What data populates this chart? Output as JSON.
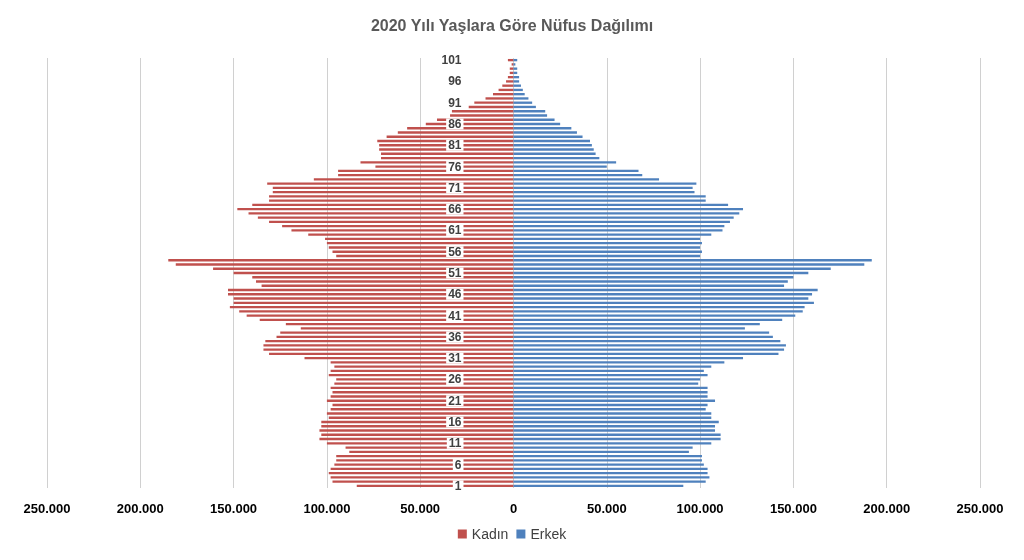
{
  "chart_data": {
    "type": "bar",
    "orientation": "horizontal",
    "title": "2020 Yılı Yaşlara Göre Nüfus Dağılımı",
    "categories": [
      "101",
      null,
      null,
      null,
      null,
      "96",
      null,
      null,
      null,
      null,
      "91",
      null,
      null,
      null,
      null,
      "86",
      null,
      null,
      null,
      null,
      "81",
      null,
      null,
      null,
      null,
      "76",
      null,
      null,
      null,
      null,
      "71",
      null,
      null,
      null,
      null,
      "66",
      null,
      null,
      null,
      null,
      "61",
      null,
      null,
      null,
      null,
      "56",
      null,
      null,
      null,
      null,
      "51",
      null,
      null,
      null,
      null,
      "46",
      null,
      null,
      null,
      null,
      "41",
      null,
      null,
      null,
      null,
      "36",
      null,
      null,
      null,
      null,
      "31",
      null,
      null,
      null,
      null,
      "26",
      null,
      null,
      null,
      null,
      "21",
      null,
      null,
      null,
      null,
      "16",
      null,
      null,
      null,
      null,
      "11",
      null,
      null,
      null,
      null,
      "6",
      null,
      null,
      null,
      null,
      "1"
    ],
    "series": [
      {
        "name": "Kadın",
        "color": "#c0504d",
        "values": [
          -3000,
          -1000,
          -2000,
          -2000,
          -3000,
          -4000,
          -6000,
          -8000,
          -11000,
          -15000,
          -21000,
          -24000,
          -33000,
          -34000,
          -41000,
          -47000,
          -57000,
          -62000,
          -68000,
          -73000,
          -72000,
          -72000,
          -71000,
          -71000,
          -82000,
          -74000,
          -94000,
          -94000,
          -107000,
          -132000,
          -129000,
          -129000,
          -131000,
          -131000,
          -140000,
          -148000,
          -142000,
          -137000,
          -131000,
          -124000,
          -119000,
          -110000,
          -101000,
          -100000,
          -99000,
          -97000,
          -95000,
          -185000,
          -181000,
          -161000,
          -150000,
          -140000,
          -138000,
          -135000,
          -153000,
          -153000,
          -150000,
          -150000,
          -152000,
          -147000,
          -143000,
          -136000,
          -122000,
          -114000,
          -125000,
          -127000,
          -133000,
          -134000,
          -134000,
          -131000,
          -112000,
          -98000,
          -96000,
          -98000,
          -99000,
          -95000,
          -96000,
          -98000,
          -97000,
          -98000,
          -100000,
          -97000,
          -98000,
          -100000,
          -99000,
          -103000,
          -103000,
          -104000,
          -103000,
          -104000,
          -100000,
          -90000,
          -88000,
          -95000,
          -95000,
          -96000,
          -98000,
          -99000,
          -98000,
          -97000,
          -84000
        ]
      },
      {
        "name": "Erkek",
        "color": "#4f81bd",
        "values": [
          2000,
          1000,
          2000,
          2000,
          3000,
          3000,
          4000,
          5000,
          6000,
          8000,
          10000,
          12000,
          17000,
          18000,
          22000,
          25000,
          31000,
          34000,
          37000,
          41000,
          42000,
          43000,
          44000,
          46000,
          55000,
          50000,
          67000,
          69000,
          78000,
          98000,
          96000,
          97000,
          103000,
          103000,
          115000,
          123000,
          121000,
          118000,
          116000,
          113000,
          112000,
          106000,
          100000,
          101000,
          100000,
          101000,
          100000,
          192000,
          188000,
          170000,
          158000,
          150000,
          147000,
          145000,
          163000,
          160000,
          158000,
          161000,
          156000,
          155000,
          151000,
          144000,
          132000,
          124000,
          137000,
          139000,
          143000,
          146000,
          145000,
          142000,
          123000,
          113000,
          106000,
          102000,
          104000,
          100000,
          99000,
          104000,
          104000,
          104000,
          108000,
          104000,
          103000,
          106000,
          106000,
          110000,
          108000,
          108000,
          111000,
          111000,
          106000,
          96000,
          94000,
          101000,
          101000,
          102000,
          104000,
          104000,
          105000,
          103000,
          91000
        ]
      }
    ],
    "xlim": [
      -250000,
      250000
    ],
    "xticks": [
      {
        "value": -250000,
        "label": "250.000"
      },
      {
        "value": -200000,
        "label": "200.000"
      },
      {
        "value": -150000,
        "label": "150.000"
      },
      {
        "value": -100000,
        "label": "100.000"
      },
      {
        "value": -50000,
        "label": "50.000"
      },
      0,
      {
        "value": 50000,
        "label": "50.000"
      },
      {
        "value": 100000,
        "label": "100.000"
      },
      {
        "value": 150000,
        "label": "150.000"
      },
      {
        "value": 200000,
        "label": "200.000"
      },
      {
        "value": 250000,
        "label": "250.000"
      }
    ],
    "grid": "x",
    "legend": "bottom",
    "stacked": true
  }
}
